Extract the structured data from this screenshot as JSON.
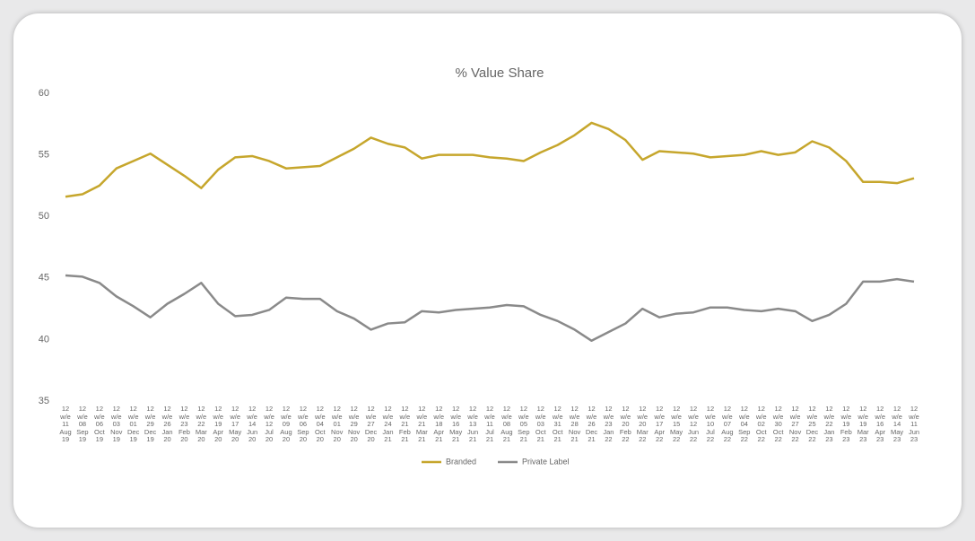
{
  "chart_data": {
    "type": "line",
    "title": "% Value Share",
    "categories": [
      "12 w/e 11 Aug 19",
      "12 w/e 08 Sep 19",
      "12 w/e 06 Oct 19",
      "12 w/e 03 Nov 19",
      "12 w/e 01 Dec 19",
      "12 w/e 29 Dec 19",
      "12 w/e 26 Jan 20",
      "12 w/e 23 Feb 20",
      "12 w/e 22 Mar 20",
      "12 w/e 19 Apr 20",
      "12 w/e 17 May 20",
      "12 w/e 14 Jun 20",
      "12 w/e 12 Jul 20",
      "12 w/e 09 Aug 20",
      "12 w/e 06 Sep 20",
      "12 w/e 04 Oct 20",
      "12 w/e 01 Nov 20",
      "12 w/e 29 Nov 20",
      "12 w/e 27 Dec 20",
      "12 w/e 24 Jan 21",
      "12 w/e 21 Feb 21",
      "12 w/e 21 Mar 21",
      "12 w/e 18 Apr 21",
      "12 w/e 16 May 21",
      "12 w/e 13 Jun 21",
      "12 w/e 11 Jul 21",
      "12 w/e 08 Aug 21",
      "12 w/e 05 Sep 21",
      "12 w/e 03 Oct 21",
      "12 w/e 31 Oct 21",
      "12 w/e 28 Nov 21",
      "12 w/e 26 Dec 21",
      "12 w/e 23 Jan 22",
      "12 w/e 20 Feb 22",
      "12 w/e 20 Mar 22",
      "12 w/e 17 Apr 22",
      "12 w/e 15 May 22",
      "12 w/e 12 Jun 22",
      "12 w/e 10 Jul 22",
      "12 w/e 07 Aug 22",
      "12 w/e 04 Sep 22",
      "12 w/e 02 Oct 22",
      "12 w/e 30 Oct 22",
      "12 w/e 27 Nov 22",
      "12 w/e 25 Dec 22",
      "12 w/e 22 Jan 23",
      "12 w/e 19 Feb 23",
      "12 w/e 19 Mar 23",
      "12 w/e 16 Apr 23",
      "12 w/e 14 May 23",
      "12 w/e 11 Jun 23"
    ],
    "series": [
      {
        "name": "Branded",
        "color": "#c6a62c",
        "values": [
          51.6,
          51.8,
          52.5,
          53.9,
          54.5,
          55.1,
          54.2,
          53.3,
          52.3,
          53.8,
          54.8,
          54.9,
          54.5,
          53.9,
          54.0,
          54.1,
          54.8,
          55.5,
          56.4,
          55.9,
          55.6,
          54.7,
          55.0,
          55.0,
          55.0,
          54.8,
          54.7,
          54.5,
          55.2,
          55.8,
          56.6,
          57.6,
          57.1,
          56.2,
          54.6,
          55.3,
          55.2,
          55.1,
          54.8,
          54.9,
          55.0,
          55.3,
          55.0,
          55.2,
          56.1,
          55.6,
          54.5,
          52.8,
          52.8,
          52.7,
          53.1
        ]
      },
      {
        "name": "Private Label",
        "color": "#8a8a8a",
        "values": [
          45.2,
          45.1,
          44.6,
          43.5,
          42.7,
          41.8,
          42.9,
          43.7,
          44.6,
          42.9,
          41.9,
          42.0,
          42.4,
          43.4,
          43.3,
          43.3,
          42.3,
          41.7,
          40.8,
          41.3,
          41.4,
          42.3,
          42.2,
          42.4,
          42.5,
          42.6,
          42.8,
          42.7,
          42.0,
          41.5,
          40.8,
          39.9,
          40.6,
          41.3,
          42.5,
          41.8,
          42.1,
          42.2,
          42.6,
          42.6,
          42.4,
          42.3,
          42.5,
          42.3,
          41.5,
          42.0,
          42.9,
          44.7,
          44.7,
          44.9,
          44.7
        ]
      }
    ],
    "ylim": [
      35,
      60
    ],
    "yticks": [
      35,
      40,
      45,
      50,
      55,
      60
    ],
    "grid": false,
    "legend": "bottom"
  }
}
